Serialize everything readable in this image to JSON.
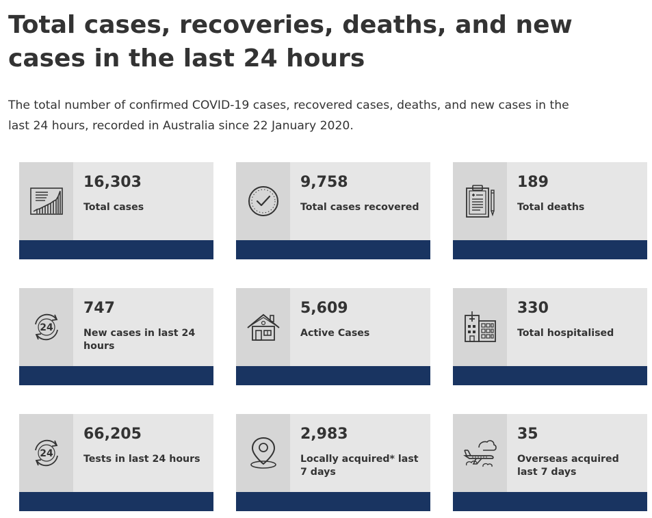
{
  "title": "Total cases, recoveries, deaths, and new cases in the last 24 hours",
  "intro": "The total number of confirmed COVID-19 cases, recovered cases, deaths, and new cases in the last 24 hours, recorded in Australia since 22 January 2020.",
  "colors": {
    "card_background": "#e6e6e6",
    "icon_background": "#d6d6d6",
    "bar": "#193461",
    "text": "#333333"
  },
  "cards": [
    {
      "value": "16,303",
      "label": "Total cases",
      "icon": "line-chart-icon"
    },
    {
      "value": "9,758",
      "label": "Total cases recovered",
      "icon": "check-circle-icon"
    },
    {
      "value": "189",
      "label": "Total deaths",
      "icon": "clipboard-icon"
    },
    {
      "value": "747",
      "label": "New cases in last 24 hours",
      "icon": "24-hours-icon"
    },
    {
      "value": "5,609",
      "label": "Active Cases",
      "icon": "house-icon"
    },
    {
      "value": "330",
      "label": "Total hospitalised",
      "icon": "hospital-icon"
    },
    {
      "value": "66,205",
      "label": "Tests in last 24 hours",
      "icon": "24-hours-icon"
    },
    {
      "value": "2,983",
      "label": "Locally acquired* last 7 days",
      "icon": "location-pin-icon"
    },
    {
      "value": "35",
      "label": "Overseas acquired last 7 days",
      "icon": "airplane-icon"
    }
  ]
}
